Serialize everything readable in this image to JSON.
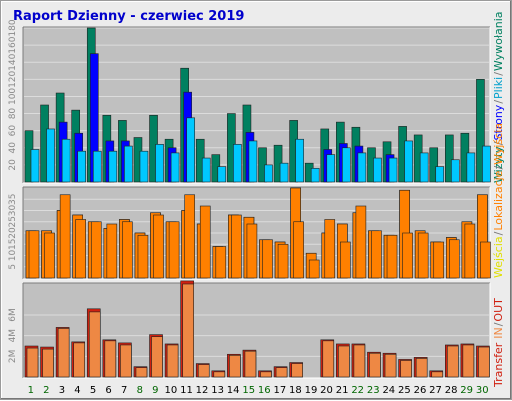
{
  "chart_data": {
    "type": "bar",
    "title": "Raport Dzienny -  czerwiec 2019",
    "title_color": "#0000cc",
    "categories": [
      "1",
      "2",
      "3",
      "4",
      "5",
      "6",
      "7",
      "8",
      "9",
      "10",
      "11",
      "12",
      "13",
      "14",
      "15",
      "16",
      "17",
      "18",
      "19",
      "20",
      "21",
      "22",
      "23",
      "24",
      "25",
      "26",
      "27",
      "28",
      "29",
      "30"
    ],
    "weekend_days": [
      "1",
      "2",
      "8",
      "9",
      "15",
      "16",
      "22",
      "23",
      "29",
      "30"
    ],
    "colors": {
      "weekday_label": "#000000",
      "weekend_label": "#006600",
      "plot_bg": "#c0c0c0",
      "grid": "#dcdcdc",
      "wizyty": "#008060",
      "strony": "#0000ff",
      "pliki": "#00c8ff",
      "wyjscia": "#e0e000",
      "lokalizacje": "#ff8000",
      "wejscia": "#ff8000",
      "transfer_in": "#ee8844",
      "transfer_out": "#d02010"
    },
    "panels": [
      {
        "id": "traffic",
        "ylim": [
          0,
          180
        ],
        "ticks": [
          "180",
          "160",
          "140",
          "120",
          "100",
          "80",
          "60",
          "40",
          "20"
        ],
        "series": [
          {
            "key": "wizyty",
            "values": [
              60,
              90,
              104,
              84,
              180,
              78,
              72,
              52,
              78,
              50,
              133,
              50,
              32,
              80,
              90,
              40,
              43,
              72,
              22,
              62,
              70,
              64,
              40,
              47,
              65,
              55,
              40,
              55,
              57,
              120
            ]
          },
          {
            "key": "strony",
            "values": [
              0,
              0,
              70,
              57,
              150,
              48,
              48,
              0,
              0,
              40,
              105,
              0,
              0,
              0,
              58,
              0,
              0,
              0,
              0,
              38,
              45,
              42,
              0,
              32,
              0,
              0,
              0,
              0,
              0,
              0
            ]
          },
          {
            "key": "pliki",
            "values": [
              38,
              62,
              50,
              36,
              36,
              36,
              42,
              36,
              44,
              34,
              75,
              28,
              18,
              44,
              48,
              20,
              22,
              50,
              16,
              32,
              40,
              34,
              28,
              28,
              48,
              34,
              18,
              26,
              34,
              42
            ]
          }
        ]
      },
      {
        "id": "visits",
        "ylim": [
          0,
          40
        ],
        "ticks": [
          "35",
          "30",
          "25",
          "20",
          "15",
          "10",
          "5"
        ],
        "series": [
          {
            "key": "wyjscia",
            "values": [
              21,
              21,
              30,
              28,
              25,
              22,
              26,
              20,
              29,
              25,
              30,
              24,
              14,
              28,
              27,
              17,
              16,
              40,
              11,
              20,
              24,
              29,
              21,
              19,
              39,
              21,
              16,
              18,
              25,
              37
            ]
          },
          {
            "key": "lokalizacje",
            "values": [
              21,
              21,
              30,
              28,
              25,
              22,
              26,
              20,
              29,
              25,
              30,
              24,
              14,
              28,
              27,
              17,
              16,
              40,
              11,
              20,
              24,
              29,
              21,
              19,
              39,
              21,
              16,
              18,
              25,
              37
            ]
          },
          {
            "key": "wejscia",
            "values": [
              21,
              20,
              37,
              26,
              25,
              24,
              25,
              19,
              28,
              25,
              37,
              32,
              14,
              28,
              24,
              17,
              15,
              25,
              8,
              26,
              16,
              32,
              21,
              19,
              20,
              20,
              16,
              17,
              24,
              16
            ]
          }
        ]
      },
      {
        "id": "transfer",
        "ylim": [
          0,
          9
        ],
        "ticks": [
          "6M",
          "4M",
          "2M"
        ],
        "series": [
          {
            "key": "transfer_out",
            "values": [
              3.0,
              2.9,
              4.8,
              3.4,
              6.6,
              3.6,
              3.3,
              1.0,
              4.1,
              3.2,
              9.3,
              1.3,
              0.6,
              2.2,
              2.6,
              0.6,
              1.0,
              1.4,
              0,
              3.6,
              3.2,
              3.2,
              2.4,
              2.3,
              1.7,
              1.9,
              0.6,
              3.1,
              3.2,
              3.0
            ]
          },
          {
            "key": "transfer_in",
            "values": [
              2.8,
              2.7,
              4.7,
              3.3,
              6.3,
              3.5,
              3.1,
              0.9,
              3.9,
              3.1,
              9.0,
              1.2,
              0.5,
              2.1,
              2.5,
              0.5,
              0.9,
              1.3,
              0,
              3.5,
              3.0,
              3.1,
              2.3,
              2.2,
              1.6,
              1.8,
              0.5,
              3.0,
              3.1,
              2.9
            ]
          }
        ]
      }
    ],
    "legend_right": [
      {
        "text": "Wizyty",
        "color": "#008060"
      },
      {
        "text": "/",
        "color": "#7a7a7a"
      },
      {
        "text": "Strony",
        "color": "#0000ff"
      },
      {
        "text": "/",
        "color": "#7a7a7a"
      },
      {
        "text": "Pliki",
        "color": "#00a0cc"
      },
      {
        "text": "/",
        "color": "#7a7a7a"
      },
      {
        "text": "Wywołania",
        "color": "#008060"
      }
    ],
    "legend_mid": [
      {
        "text": "Wejścia",
        "color": "#e0e000"
      },
      {
        "text": "/",
        "color": "#7a7a7a"
      },
      {
        "text": "Lokalizacje",
        "color": "#ff8000"
      },
      {
        "text": "/",
        "color": "#7a7a7a"
      },
      {
        "text": "Wyjścia",
        "color": "#ff8000"
      }
    ],
    "legend_bottom": [
      {
        "text": "Transfer",
        "color": "#d02010"
      },
      {
        "text": "IN",
        "color": "#ee8844"
      },
      {
        "text": "/",
        "color": "#7a7a7a"
      },
      {
        "text": "OUT",
        "color": "#d02010"
      }
    ]
  }
}
